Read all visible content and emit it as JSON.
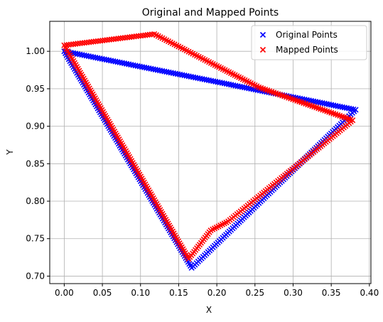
{
  "chart_data": {
    "type": "scatter",
    "title": "Original and Mapped Points",
    "xlabel": "X",
    "ylabel": "Y",
    "xlim": [
      -0.019,
      0.402
    ],
    "ylim": [
      0.69,
      1.04
    ],
    "xticks": [
      0.0,
      0.05,
      0.1,
      0.15,
      0.2,
      0.25,
      0.3,
      0.35,
      0.4
    ],
    "xtick_labels": [
      "0.00",
      "0.05",
      "0.10",
      "0.15",
      "0.20",
      "0.25",
      "0.30",
      "0.35",
      "0.40"
    ],
    "yticks": [
      0.7,
      0.75,
      0.8,
      0.85,
      0.9,
      0.95,
      1.0
    ],
    "ytick_labels": [
      "0.70",
      "0.75",
      "0.80",
      "0.85",
      "0.90",
      "0.95",
      "1.00"
    ],
    "grid": true,
    "legend": "top-right",
    "marker": "x",
    "series": [
      {
        "name": "Original Points",
        "color": "#0000ff",
        "vertices": [
          [
            0.0,
            1.0
          ],
          [
            0.382,
            0.922
          ],
          [
            0.167,
            0.711
          ],
          [
            0.0,
            1.0
          ]
        ]
      },
      {
        "name": "Mapped Points",
        "color": "#ff0000",
        "vertices": [
          [
            0.0,
            1.008
          ],
          [
            0.118,
            1.023
          ],
          [
            0.195,
            0.983
          ],
          [
            0.255,
            0.952
          ],
          [
            0.378,
            0.908
          ],
          [
            0.215,
            0.773
          ],
          [
            0.192,
            0.761
          ],
          [
            0.163,
            0.723
          ],
          [
            0.0,
            1.008
          ]
        ]
      }
    ]
  }
}
